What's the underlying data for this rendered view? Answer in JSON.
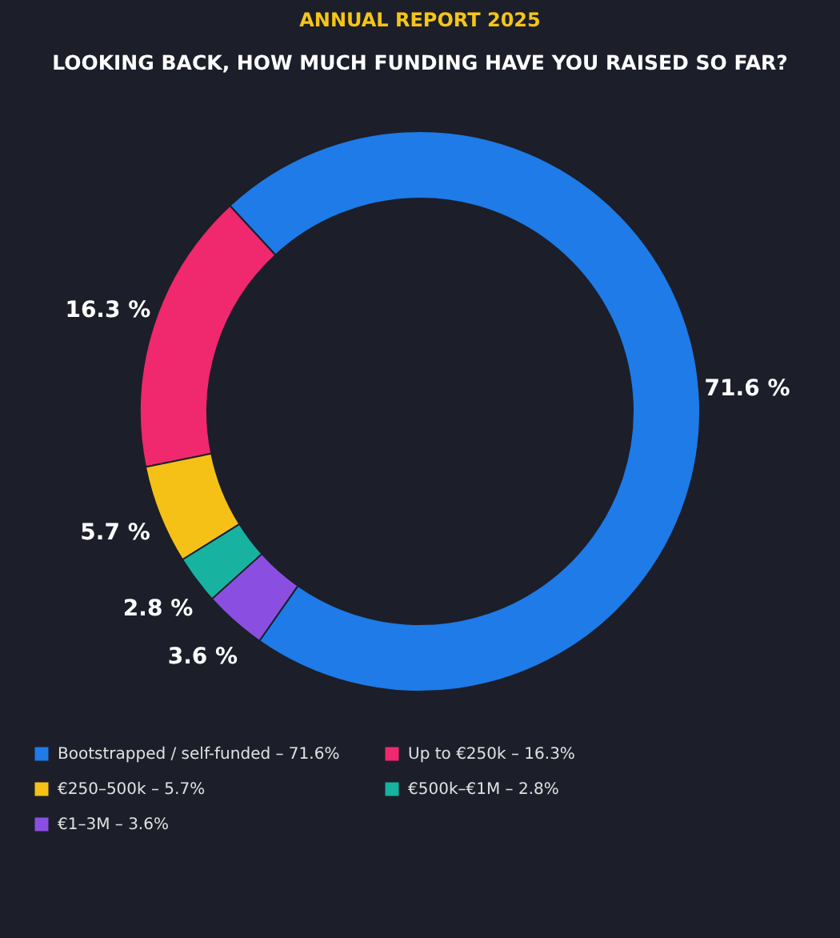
{
  "chart_data": {
    "type": "donut",
    "title": "ANNUAL REPORT 2025",
    "subtitle": "LOOKING BACK, HOW MUCH FUNDING HAVE YOU RAISED SO FAR?",
    "categories": [
      "Bootstrapped / self-funded – 71.6%",
      "Up to €250k – 16.3%",
      "€250–500k – 5.7%",
      "€500k–€1M – 2.8%",
      "€1–3M – 3.6%"
    ],
    "values": [
      71.6,
      16.3,
      5.7,
      2.8,
      3.6
    ],
    "colors": [
      "#1e7be8",
      "#f0286e",
      "#f5c116",
      "#17b2a0",
      "#8a4fe0"
    ],
    "value_labels": [
      "71.6 %",
      "16.3 %",
      "5.7 %",
      "2.8 %",
      "3.6 %"
    ],
    "legend": "bottom"
  }
}
